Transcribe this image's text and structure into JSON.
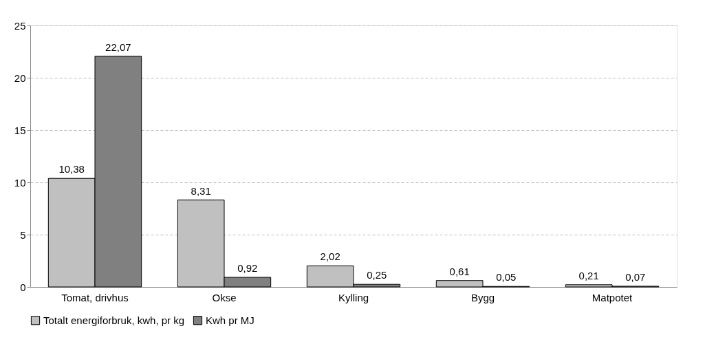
{
  "chart_data": {
    "type": "bar",
    "categories": [
      "Tomat, drivhus",
      "Okse",
      "Kylling",
      "Bygg",
      "Matpotet"
    ],
    "series": [
      {
        "name": "Totalt energiforbruk, kwh, pr kg",
        "color": "#c0c0c0",
        "values": [
          10.38,
          8.31,
          2.02,
          0.61,
          0.21
        ],
        "value_labels": [
          "10,38",
          "8,31",
          "2,02",
          "0,61",
          "0,21"
        ]
      },
      {
        "name": "Kwh pr MJ",
        "color": "#808080",
        "values": [
          22.07,
          0.92,
          0.25,
          0.05,
          0.07
        ],
        "value_labels": [
          "22,07",
          "0,92",
          "0,25",
          "0,05",
          "0,07"
        ]
      }
    ],
    "ylim": [
      0,
      25
    ],
    "yticks": [
      0,
      5,
      10,
      15,
      20,
      25
    ],
    "grid": "y",
    "legend": "bottom"
  }
}
